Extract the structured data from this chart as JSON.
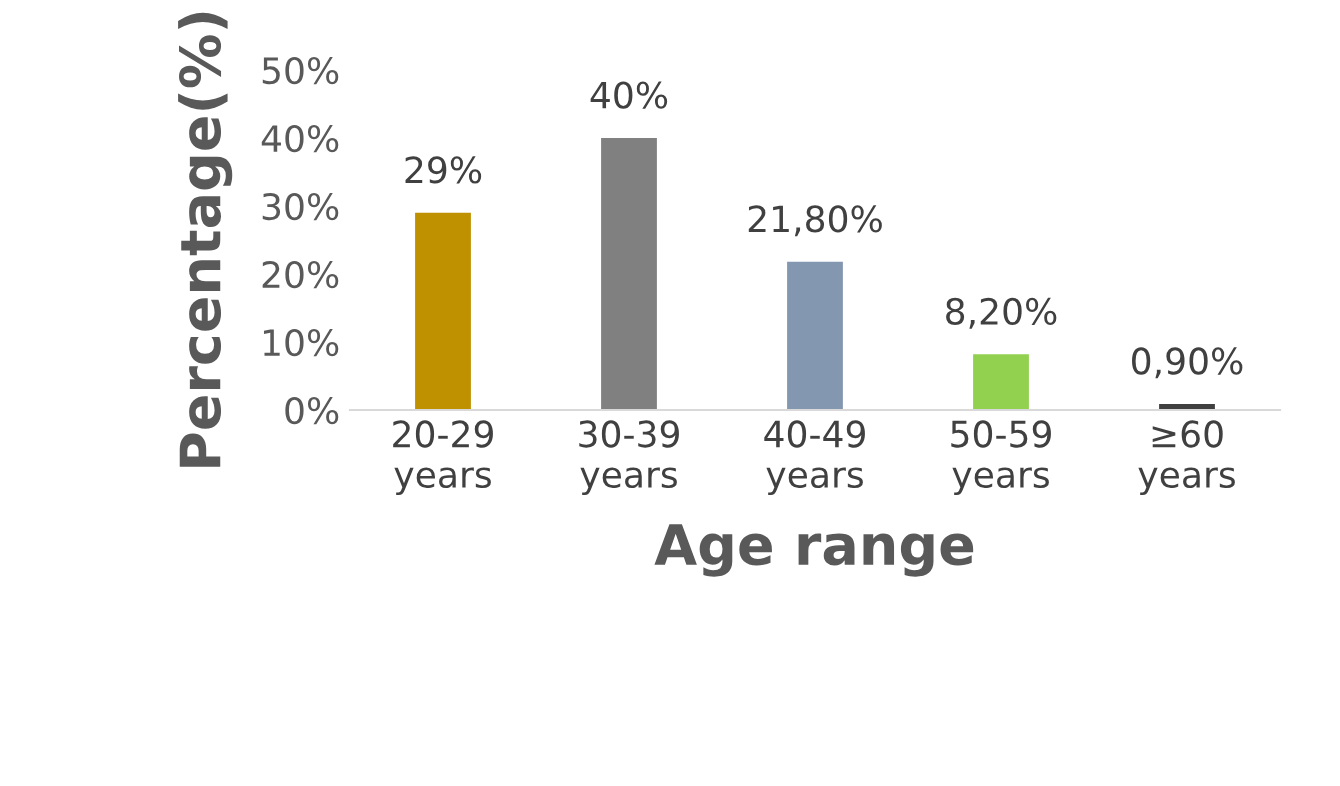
{
  "chart_data": {
    "type": "bar",
    "xlabel": "Age range",
    "ylabel": "Percentage(%)",
    "categories": [
      "20-29\nyears",
      "30-39\nyears",
      "40-49\nyears",
      "50-59\nyears",
      "≥60\nyears"
    ],
    "values": [
      29,
      40,
      21.8,
      8.2,
      0.9
    ],
    "colors": [
      "#bf9000",
      "#808080",
      "#8497b0",
      "#92d050",
      "#404040"
    ],
    "value_labels": [
      "29%",
      "40%",
      "21,80%",
      "8,20%",
      "0,90%"
    ],
    "ylim": [
      0,
      50
    ],
    "yticks": [
      {
        "value": 0,
        "label": "0%"
      },
      {
        "value": 10,
        "label": "10%"
      },
      {
        "value": 20,
        "label": "20%"
      },
      {
        "value": 30,
        "label": "30%"
      },
      {
        "value": 40,
        "label": "40%"
      },
      {
        "value": 50,
        "label": "50%"
      }
    ],
    "grid": false,
    "legend": false
  }
}
